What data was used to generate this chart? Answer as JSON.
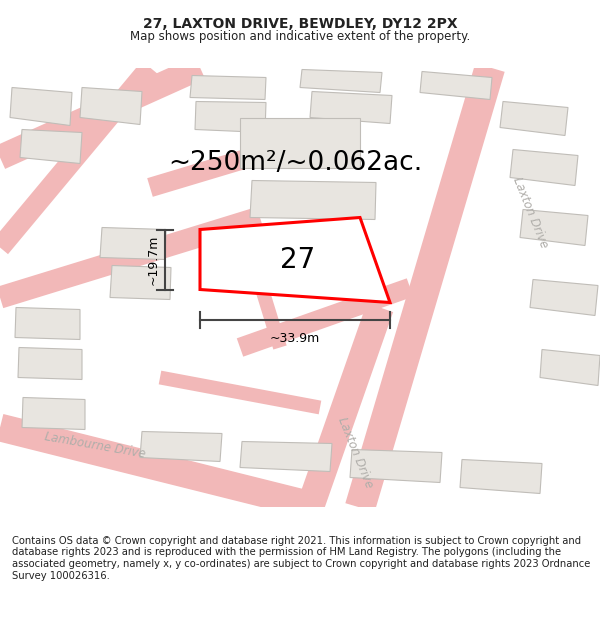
{
  "title_line1": "27, LAXTON DRIVE, BEWDLEY, DY12 2PX",
  "title_line2": "Map shows position and indicative extent of the property.",
  "area_text": "~250m²/~0.062ac.",
  "dim_width": "~33.9m",
  "dim_height": "~19.7m",
  "plot_label": "27",
  "footer_text": "Contains OS data © Crown copyright and database right 2021. This information is subject to Crown copyright and database rights 2023 and is reproduced with the permission of HM Land Registry. The polygons (including the associated geometry, namely x, y co-ordinates) are subject to Crown copyright and database rights 2023 Ordnance Survey 100026316.",
  "map_bg": "#f7f6f4",
  "road_color": "#f2b8b8",
  "road_edge_color": "#e89090",
  "building_color": "#e8e5e0",
  "building_edge": "#c0bdb8",
  "plot_color": "#ff0000",
  "plot_fill": "#ffffff",
  "dim_color": "#444444",
  "text_color": "#222222",
  "street_label_color": "#b0aeaa",
  "title_fontsize": 10,
  "subtitle_fontsize": 8.5,
  "area_fontsize": 19,
  "dim_fontsize": 9,
  "plot_num_fontsize": 20,
  "footer_fontsize": 7.2,
  "road_lw": 6
}
